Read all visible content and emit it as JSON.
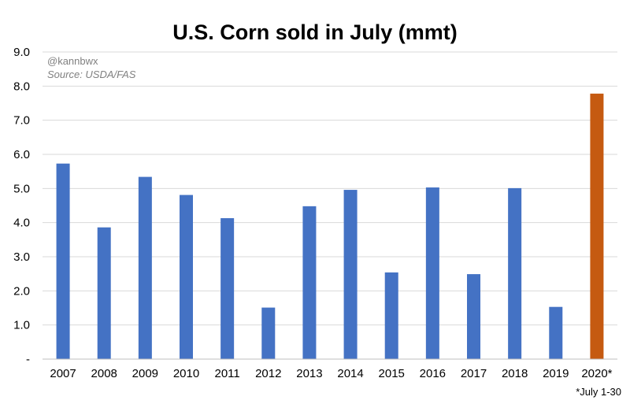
{
  "chart_data": {
    "type": "bar",
    "title": "U.S. Corn sold in July (mmt)",
    "credit": "@kannbwx",
    "source": "Source: USDA/FAS",
    "footnote": "*July 1-30",
    "categories": [
      "2007",
      "2008",
      "2009",
      "2010",
      "2011",
      "2012",
      "2013",
      "2014",
      "2015",
      "2016",
      "2017",
      "2018",
      "2019",
      "2020*"
    ],
    "values": [
      5.73,
      3.86,
      5.34,
      4.81,
      4.13,
      1.51,
      4.48,
      4.96,
      2.54,
      5.03,
      2.49,
      5.01,
      1.53,
      7.78
    ],
    "highlight_index": 13,
    "colors": {
      "bar": "#4472C4",
      "highlight": "#C55A11"
    },
    "ylim": [
      0,
      9
    ],
    "yticks": [
      {
        "value": 0,
        "label": "-"
      },
      {
        "value": 1,
        "label": "1.0"
      },
      {
        "value": 2,
        "label": "2.0"
      },
      {
        "value": 3,
        "label": "3.0"
      },
      {
        "value": 4,
        "label": "4.0"
      },
      {
        "value": 5,
        "label": "5.0"
      },
      {
        "value": 6,
        "label": "6.0"
      },
      {
        "value": 7,
        "label": "7.0"
      },
      {
        "value": 8,
        "label": "8.0"
      },
      {
        "value": 9,
        "label": "9.0"
      }
    ],
    "grid": true,
    "legend": "none",
    "xlabel": "",
    "ylabel": ""
  }
}
